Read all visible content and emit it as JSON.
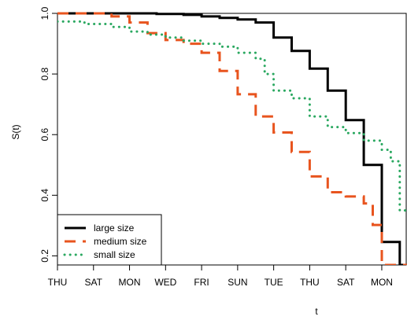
{
  "chart_data": {
    "type": "line",
    "xlabel": "t",
    "ylabel": "S(t)",
    "xlim": [
      0,
      19.4
    ],
    "ylim": [
      0.17,
      1.0
    ],
    "x_ticks": [
      {
        "pos": 0,
        "label": "THU"
      },
      {
        "pos": 2,
        "label": "SAT"
      },
      {
        "pos": 4,
        "label": "MON"
      },
      {
        "pos": 6,
        "label": "WED"
      },
      {
        "pos": 8,
        "label": "FRI"
      },
      {
        "pos": 10,
        "label": "SUN"
      },
      {
        "pos": 12,
        "label": "TUE"
      },
      {
        "pos": 14,
        "label": "THU"
      },
      {
        "pos": 16,
        "label": "SAT"
      },
      {
        "pos": 18,
        "label": "MON"
      }
    ],
    "y_ticks": [
      {
        "pos": 0.2,
        "label": "0.2"
      },
      {
        "pos": 0.4,
        "label": "0.4"
      },
      {
        "pos": 0.6,
        "label": "0.6"
      },
      {
        "pos": 0.8,
        "label": "0.8"
      },
      {
        "pos": 1.0,
        "label": "1.0"
      }
    ],
    "legend_position": "bottom-left",
    "series": [
      {
        "name": "large size",
        "color": "#000000",
        "style": "solid",
        "steps": [
          [
            0,
            1.0
          ],
          [
            5.5,
            0.998
          ],
          [
            7.0,
            0.995
          ],
          [
            8.0,
            0.99
          ],
          [
            9.0,
            0.985
          ],
          [
            10.0,
            0.98
          ],
          [
            11.0,
            0.97
          ],
          [
            12.0,
            0.92
          ],
          [
            13.0,
            0.876
          ],
          [
            14.0,
            0.818
          ],
          [
            15.0,
            0.745
          ],
          [
            16.0,
            0.648
          ],
          [
            17.0,
            0.5
          ],
          [
            18.0,
            0.246
          ],
          [
            19.0,
            0.17
          ]
        ]
      },
      {
        "name": "medium size",
        "color": "#e8541e",
        "style": "dashed",
        "steps": [
          [
            0,
            1.0
          ],
          [
            3.0,
            0.99
          ],
          [
            4.0,
            0.97
          ],
          [
            5.0,
            0.935
          ],
          [
            6.0,
            0.912
          ],
          [
            7.0,
            0.9
          ],
          [
            8.0,
            0.87
          ],
          [
            9.0,
            0.81
          ],
          [
            10.0,
            0.733
          ],
          [
            11.0,
            0.66
          ],
          [
            12.0,
            0.607
          ],
          [
            13.0,
            0.543
          ],
          [
            14.0,
            0.462
          ],
          [
            15.0,
            0.41
          ],
          [
            16.0,
            0.396
          ],
          [
            17.0,
            0.373
          ],
          [
            17.5,
            0.302
          ],
          [
            18.0,
            0.17
          ]
        ]
      },
      {
        "name": "small size",
        "color": "#2aa860",
        "style": "dotted",
        "steps": [
          [
            0,
            0.973
          ],
          [
            1.5,
            0.965
          ],
          [
            3.0,
            0.955
          ],
          [
            4.0,
            0.94
          ],
          [
            5.0,
            0.93
          ],
          [
            6.0,
            0.92
          ],
          [
            7.0,
            0.91
          ],
          [
            8.0,
            0.9
          ],
          [
            9.0,
            0.89
          ],
          [
            10.0,
            0.87
          ],
          [
            11.0,
            0.85
          ],
          [
            11.5,
            0.8
          ],
          [
            12.0,
            0.745
          ],
          [
            13.0,
            0.72
          ],
          [
            14.0,
            0.66
          ],
          [
            15.0,
            0.625
          ],
          [
            16.0,
            0.605
          ],
          [
            17.0,
            0.58
          ],
          [
            18.0,
            0.55
          ],
          [
            18.5,
            0.512
          ],
          [
            19.0,
            0.35
          ],
          [
            19.4,
            0.345
          ]
        ]
      }
    ]
  }
}
